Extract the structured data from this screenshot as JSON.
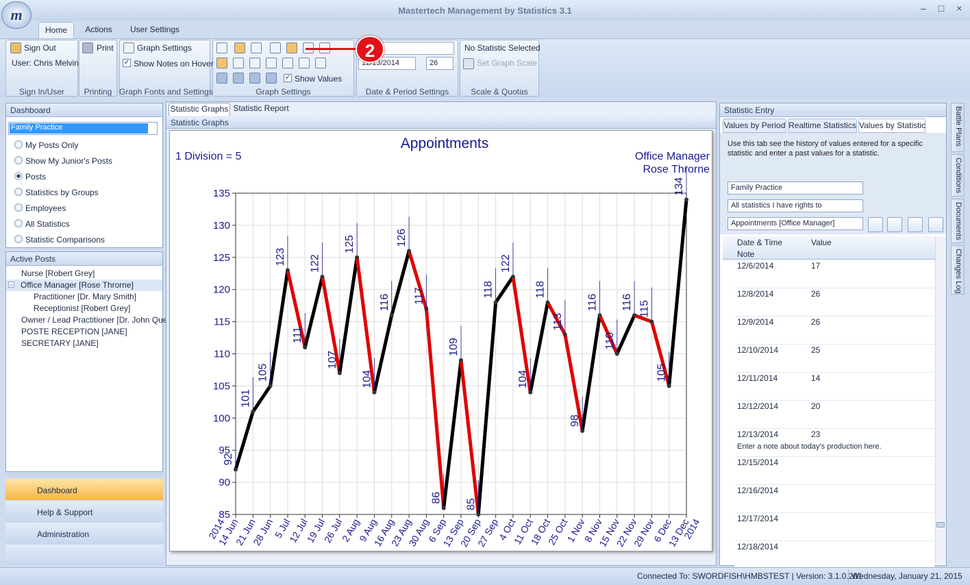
{
  "app_title": "Mastertech Management by Statistics 3.1",
  "ribbon_tabs": [
    "Home",
    "Actions",
    "User Settings"
  ],
  "ribbon": {
    "sign_out": "Sign Out",
    "user": "User: Chris Melvin",
    "group_sign": "Sign In/User",
    "print": "Print",
    "group_print": "Printing",
    "graph_settings": "Graph Settings",
    "show_notes": "Show Notes on Hover",
    "group_fonts": "Graph Fonts and Settings",
    "show_values": "Show Values",
    "group_graph": "Graph Settings",
    "date": "12/13/2014",
    "period": "26",
    "group_date": "Date & Period Settings",
    "no_stat": "No Statistic Selected",
    "set_scale": "Set Graph Scale",
    "group_scale": "Scale & Quotas"
  },
  "callout": "2",
  "dashboard": {
    "title": "Dashboard",
    "selector": "Family Practice",
    "options": [
      "My Posts Only",
      "Show My Junior's Posts",
      "Posts",
      "Statistics by Groups",
      "Employees",
      "All Statistics",
      "Statistic Comparisons"
    ],
    "selected": 2
  },
  "active_posts": {
    "title": "Active Posts",
    "selected": 1,
    "items": [
      {
        "label": "Nurse [Robert Grey]",
        "level": 0
      },
      {
        "label": "Office Manager [Rose Throrne]",
        "level": 0,
        "expanded": true
      },
      {
        "label": "Practitioner  [Dr. Mary Smith]",
        "level": 1
      },
      {
        "label": "Receptionist  [Robert Grey]",
        "level": 1
      },
      {
        "label": "Owner / Lead Practitioner  [Dr. John Que]",
        "level": 0
      },
      {
        "label": "POSTE RECEPTION [JANE]",
        "level": 0
      },
      {
        "label": "SECRETARY [JANE]",
        "level": 0
      }
    ]
  },
  "nav": [
    "Dashboard",
    "Help & Support",
    "Administration"
  ],
  "center_tabs": [
    "Statistic Graphs",
    "Statistic Report"
  ],
  "center_subtitle": "Statistic Graphs",
  "chart_data": {
    "type": "line",
    "title": "Appointments",
    "subtitle": "1 Division = 5",
    "post": "Office Manager",
    "person": "Rose Throrne",
    "categories": [
      "14 Jun",
      "21 Jun",
      "28 Jun",
      "5 Jul",
      "12 Jul",
      "19 Jul",
      "26 Jul",
      "2 Aug",
      "9 Aug",
      "16 Aug",
      "23 Aug",
      "30 Aug",
      "6 Sep",
      "13 Sep",
      "20 Sep",
      "27 Sep",
      "4 Oct",
      "11 Oct",
      "18 Oct",
      "25 Oct",
      "1 Nov",
      "8 Nov",
      "15 Nov",
      "22 Nov",
      "29 Nov",
      "6 Dec",
      "13 Dec"
    ],
    "year_labels": [
      "2014",
      "2014"
    ],
    "values": [
      92,
      101,
      105,
      123,
      111,
      122,
      107,
      125,
      104,
      116,
      126,
      117,
      86,
      109,
      85,
      118,
      122,
      104,
      118,
      113,
      98,
      116,
      110,
      116,
      115,
      105,
      134
    ],
    "up_color": "#000000",
    "down_color": "#e00000",
    "label_color": "#1a1a8c",
    "ylim": [
      85,
      135
    ],
    "yticks": [
      85,
      90,
      95,
      100,
      105,
      110,
      115,
      120,
      125,
      130,
      135
    ],
    "grid": true
  },
  "statistic_entry": {
    "title": "Statistic Entry",
    "tabs": [
      "Values by Period",
      "Realtime Statistics",
      "Values by Statistic"
    ],
    "active_tab": 2,
    "description": "Use this tab see the history of values entered for a specific statistic and enter a past values for a statistic.",
    "selectors": [
      "Family Practice",
      "All statistics I have rights to",
      "Appointments [Office Manager]"
    ],
    "columns": [
      "Date & Time",
      "Value"
    ],
    "note_header": "Note",
    "rows": [
      {
        "date": "12/6/2014",
        "value": 17
      },
      {
        "date": "12/8/2014",
        "value": 26
      },
      {
        "date": "12/9/2014",
        "value": 26
      },
      {
        "date": "12/10/2014",
        "value": 25
      },
      {
        "date": "12/11/2014",
        "value": 14
      },
      {
        "date": "12/12/2014",
        "value": 20
      },
      {
        "date": "12/13/2014",
        "value": 23,
        "note": "Enter a note about today's production here."
      },
      {
        "date": "12/15/2014"
      },
      {
        "date": "12/16/2014"
      },
      {
        "date": "12/17/2014"
      },
      {
        "date": "12/18/2014"
      }
    ]
  },
  "side_tabs": [
    "Battle Plans",
    "Conditions",
    "Documents",
    "Changes Log"
  ],
  "status": [
    "Connected To: SWORDFISH\\HMBSTEST | Version: 3.1.0.201",
    "Wednesday, January 21, 2015"
  ]
}
